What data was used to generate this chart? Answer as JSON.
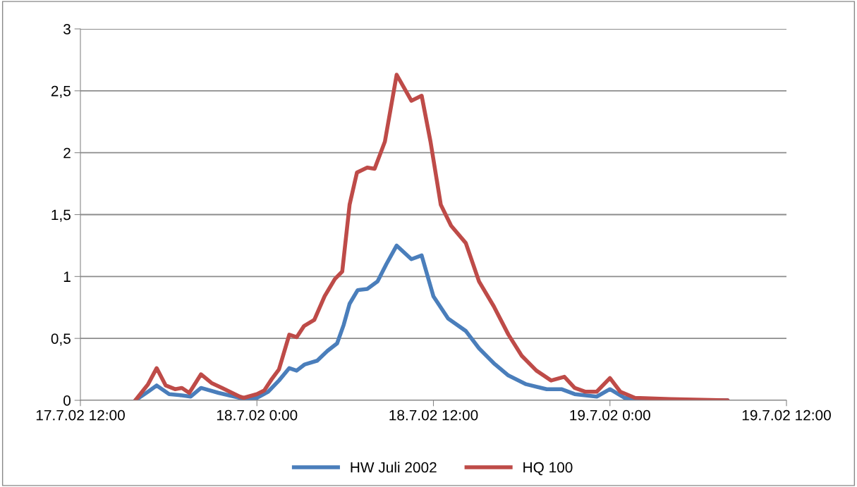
{
  "chart_data": {
    "type": "line",
    "xlim": [
      "2002-07-17T12:00",
      "2002-07-19T12:00"
    ],
    "xticks": [
      {
        "value": "2002-07-17T12:00",
        "label": "17.7.02 12:00"
      },
      {
        "value": "2002-07-18T00:00",
        "label": "18.7.02 0:00"
      },
      {
        "value": "2002-07-18T12:00",
        "label": "18.7.02 12:00"
      },
      {
        "value": "2002-07-19T00:00",
        "label": "19.7.02 0:00"
      },
      {
        "value": "2002-07-19T12:00",
        "label": "19.7.02 12:00"
      }
    ],
    "ylim": [
      0,
      3
    ],
    "yticks": [
      {
        "value": 0,
        "label": "0"
      },
      {
        "value": 0.5,
        "label": "0,5"
      },
      {
        "value": 1,
        "label": "1"
      },
      {
        "value": 1.5,
        "label": "1,5"
      },
      {
        "value": 2,
        "label": "2"
      },
      {
        "value": 2.5,
        "label": "2,5"
      },
      {
        "value": 3,
        "label": "3"
      }
    ],
    "grid": "y",
    "legend": "bottom",
    "marker": "none",
    "line_style": "solid",
    "series": [
      {
        "name": "HW Juli 2002",
        "color": "#4a7ebb",
        "x": [
          "2002-07-17T15:44",
          "2002-07-17T16:36",
          "2002-07-17T17:11",
          "2002-07-17T18:02",
          "2002-07-17T18:54",
          "2002-07-17T19:30",
          "2002-07-17T20:12",
          "2002-07-17T21:24",
          "2002-07-17T22:50",
          "2002-07-17T23:06",
          "2002-07-18T00:00",
          "2002-07-18T00:46",
          "2002-07-18T01:30",
          "2002-07-18T02:12",
          "2002-07-18T02:42",
          "2002-07-18T03:15",
          "2002-07-18T04:06",
          "2002-07-18T04:48",
          "2002-07-18T05:27",
          "2002-07-18T05:54",
          "2002-07-18T06:18",
          "2002-07-18T06:51",
          "2002-07-18T07:30",
          "2002-07-18T08:12",
          "2002-07-18T08:48",
          "2002-07-18T09:30",
          "2002-07-18T10:30",
          "2002-07-18T11:12",
          "2002-07-18T12:00",
          "2002-07-18T13:00",
          "2002-07-18T14:12",
          "2002-07-18T15:06",
          "2002-07-18T16:06",
          "2002-07-18T17:06",
          "2002-07-18T18:18",
          "2002-07-18T19:42",
          "2002-07-18T20:42",
          "2002-07-18T21:36",
          "2002-07-18T23:06",
          "2002-07-19T00:00",
          "2002-07-19T00:59",
          "2002-07-19T02:12",
          "2002-07-19T08:00"
        ],
        "values": [
          0,
          0.07,
          0.12,
          0.05,
          0.04,
          0.03,
          0.1,
          0.06,
          0.02,
          0.01,
          0.02,
          0.07,
          0.16,
          0.26,
          0.24,
          0.29,
          0.32,
          0.4,
          0.46,
          0.61,
          0.78,
          0.89,
          0.9,
          0.96,
          1.1,
          1.25,
          1.14,
          1.17,
          0.84,
          0.66,
          0.56,
          0.42,
          0.3,
          0.2,
          0.13,
          0.09,
          0.09,
          0.05,
          0.03,
          0.09,
          0.02,
          0,
          0
        ]
      },
      {
        "name": "HQ 100",
        "color": "#be4b48",
        "x": [
          "2002-07-17T15:44",
          "2002-07-17T16:36",
          "2002-07-17T17:11",
          "2002-07-17T17:48",
          "2002-07-17T18:26",
          "2002-07-17T18:54",
          "2002-07-17T19:24",
          "2002-07-17T20:12",
          "2002-07-17T20:55",
          "2002-07-17T21:38",
          "2002-07-17T22:50",
          "2002-07-17T23:06",
          "2002-07-18T00:00",
          "2002-07-18T00:30",
          "2002-07-18T01:00",
          "2002-07-18T01:30",
          "2002-07-18T02:12",
          "2002-07-18T02:42",
          "2002-07-18T03:12",
          "2002-07-18T03:54",
          "2002-07-18T04:36",
          "2002-07-18T05:18",
          "2002-07-18T05:48",
          "2002-07-18T06:18",
          "2002-07-18T06:48",
          "2002-07-18T07:30",
          "2002-07-18T08:00",
          "2002-07-18T08:42",
          "2002-07-18T09:30",
          "2002-07-18T10:30",
          "2002-07-18T11:12",
          "2002-07-18T11:48",
          "2002-07-18T12:30",
          "2002-07-18T13:12",
          "2002-07-18T14:12",
          "2002-07-18T15:06",
          "2002-07-18T16:06",
          "2002-07-18T17:06",
          "2002-07-18T18:00",
          "2002-07-18T19:00",
          "2002-07-18T20:00",
          "2002-07-18T20:54",
          "2002-07-18T21:36",
          "2002-07-18T22:18",
          "2002-07-18T23:06",
          "2002-07-19T00:00",
          "2002-07-19T00:42",
          "2002-07-19T01:42",
          "2002-07-19T04:06",
          "2002-07-19T08:00"
        ],
        "values": [
          0,
          0.13,
          0.26,
          0.12,
          0.09,
          0.1,
          0.06,
          0.21,
          0.14,
          0.1,
          0.03,
          0.02,
          0.05,
          0.08,
          0.17,
          0.25,
          0.53,
          0.51,
          0.6,
          0.65,
          0.84,
          0.98,
          1.04,
          1.58,
          1.84,
          1.88,
          1.87,
          2.09,
          2.63,
          2.42,
          2.46,
          2.09,
          1.58,
          1.41,
          1.27,
          0.96,
          0.76,
          0.53,
          0.36,
          0.24,
          0.16,
          0.19,
          0.1,
          0.07,
          0.07,
          0.18,
          0.07,
          0.02,
          0.01,
          0
        ]
      }
    ]
  }
}
